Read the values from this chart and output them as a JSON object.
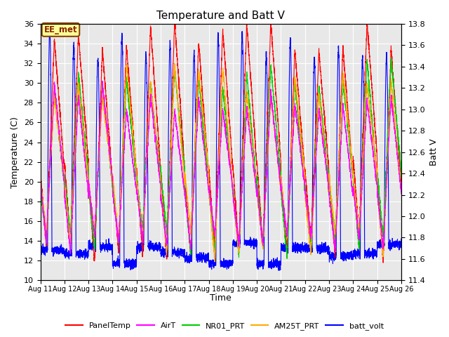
{
  "title": "Temperature and Batt V",
  "xlabel": "Time",
  "ylabel_left": "Temperature (C)",
  "ylabel_right": "Batt V",
  "annotation": "EE_met",
  "xlim_days": [
    0,
    15
  ],
  "ylim_left": [
    10,
    36
  ],
  "ylim_right": [
    11.4,
    13.8
  ],
  "xtick_labels": [
    "Aug 11",
    "Aug 12",
    "Aug 13",
    "Aug 14",
    "Aug 15",
    "Aug 16",
    "Aug 17",
    "Aug 18",
    "Aug 19",
    "Aug 20",
    "Aug 21",
    "Aug 22",
    "Aug 23",
    "Aug 24",
    "Aug 25",
    "Aug 26"
  ],
  "ytick_left": [
    10,
    12,
    14,
    16,
    18,
    20,
    22,
    24,
    26,
    28,
    30,
    32,
    34,
    36
  ],
  "ytick_right": [
    11.4,
    11.6,
    11.8,
    12.0,
    12.2,
    12.4,
    12.6,
    12.8,
    13.0,
    13.2,
    13.4,
    13.6,
    13.8
  ],
  "series_colors": {
    "PanelTemp": "#ff0000",
    "AirT": "#ff00ff",
    "NR01_PRT": "#00cc00",
    "AM25T_PRT": "#ffaa00",
    "batt_volt": "#0000ff"
  },
  "legend_entries": [
    "PanelTemp",
    "AirT",
    "NR01_PRT",
    "AM25T_PRT",
    "batt_volt"
  ],
  "background_color": "#ffffff",
  "plot_bg_color": "#e8e8e8",
  "grid_color": "#ffffff",
  "num_days": 15
}
